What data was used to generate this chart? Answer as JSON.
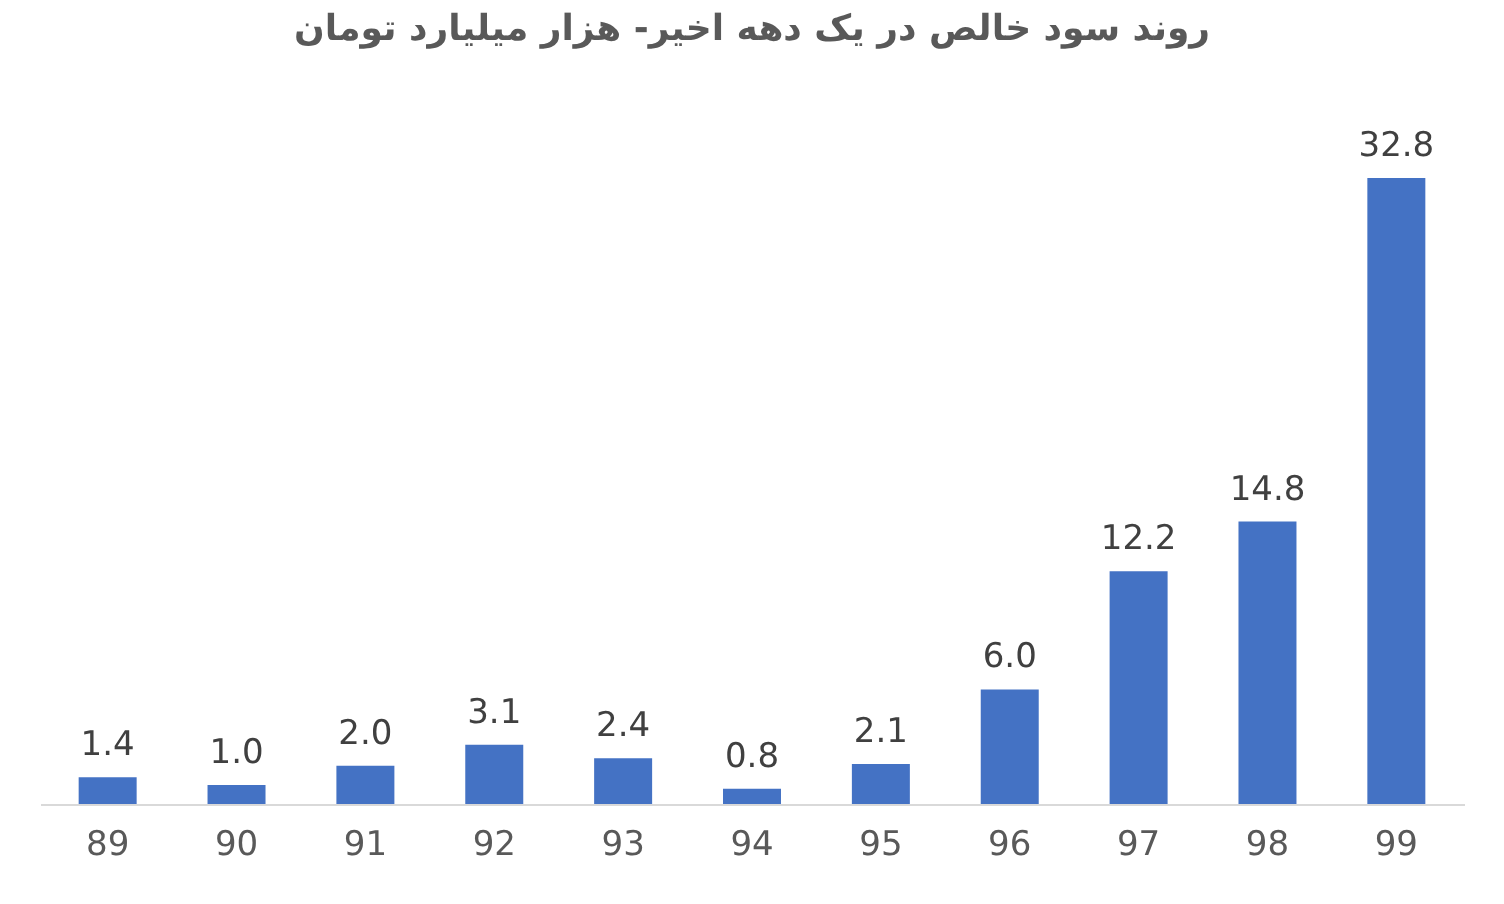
{
  "chart_data": {
    "type": "bar",
    "title": "روند سود خالص در یک دهه اخیر- هزار میلیارد تومان",
    "categories": [
      "89",
      "90",
      "91",
      "92",
      "93",
      "94",
      "95",
      "96",
      "97",
      "98",
      "99"
    ],
    "values": [
      1.4,
      1.0,
      2.0,
      3.1,
      2.4,
      0.8,
      2.1,
      6.0,
      12.2,
      14.8,
      32.8
    ],
    "value_labels": [
      "1.4",
      "1.0",
      "2.0",
      "3.1",
      "2.4",
      "0.8",
      "2.1",
      "6.0",
      "12.2",
      "14.8",
      "32.8"
    ],
    "color": "#4472c4"
  }
}
